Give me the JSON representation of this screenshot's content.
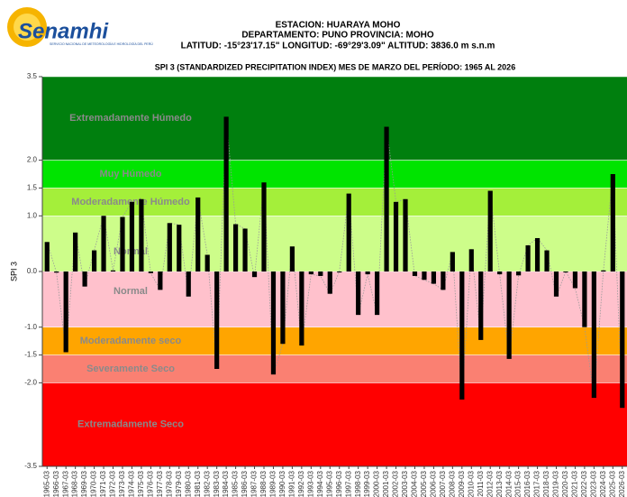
{
  "logo": {
    "name": "Senamhi",
    "subtitle": "SERVICIO NACIONAL DE METEOROLOGÍA E HIDROLOGÍA DEL PERÚ"
  },
  "header": {
    "line1": "ESTACION: HUARAYA MOHO",
    "line2": "DEPARTAMENTO: PUNO PROVINCIA: MOHO",
    "line3": "LATITUD: -15°23'17.15\" LONGITUD: -69°29'3.09\" ALTITUD: 3836.0 m s.n.m"
  },
  "chart_data": {
    "type": "bar",
    "title": "SPI 3 (STANDARDIZED PRECIPITATION INDEX) MES DE MARZO DEL PERÍODO: 1965 AL 2026",
    "ylabel": "SPI 3",
    "ylim": [
      -3.5,
      3.5
    ],
    "yticks": [
      -3.5,
      {
        "value": -2,
        "label": "-2.0"
      },
      -1.5,
      {
        "value": -1,
        "label": "-1.0"
      },
      {
        "value": 0,
        "label": "0.0"
      },
      {
        "value": 1,
        "label": "1.0"
      },
      1.5,
      {
        "value": 2,
        "label": "2.0"
      },
      3.5
    ],
    "color": "#000000",
    "line_color": "#999999",
    "bands": [
      {
        "label": "Extremadamente Húmedo",
        "from": 2,
        "to": 3.5,
        "color": "#007f0e"
      },
      {
        "label": "Muy Húmedo",
        "from": 1.5,
        "to": 2,
        "color": "#00e400"
      },
      {
        "label": "Moderadamente Húmedo",
        "from": 1,
        "to": 1.5,
        "color": "#a4ef3a"
      },
      {
        "label": "Normal",
        "from": 0,
        "to": 1,
        "color": "#cdfd8a"
      },
      {
        "label": "Normal",
        "from": -1,
        "to": 0,
        "color": "#ffc1cc"
      },
      {
        "label": "Moderadamente seco",
        "from": -1.5,
        "to": -1,
        "color": "#ffa500"
      },
      {
        "label": "Severamente Seco",
        "from": -2,
        "to": -1.5,
        "color": "#fa8072"
      },
      {
        "label": "Extremadamente Seco",
        "from": -3.5,
        "to": -2,
        "color": "#ff0000"
      }
    ],
    "categories": [
      "1965-03",
      "1966-03",
      "1967-03",
      "1968-03",
      "1969-03",
      "1970-03",
      "1971-03",
      "1972-03",
      "1973-03",
      "1974-03",
      "1975-03",
      "1976-03",
      "1977-03",
      "1978-03",
      "1979-03",
      "1980-03",
      "1981-03",
      "1982-03",
      "1983-03",
      "1984-03",
      "1985-03",
      "1986-03",
      "1987-03",
      "1988-03",
      "1989-03",
      "1990-03",
      "1991-03",
      "1992-03",
      "1993-03",
      "1994-03",
      "1995-03",
      "1996-03",
      "1997-03",
      "1998-03",
      "1999-03",
      "2000-03",
      "2001-03",
      "2002-03",
      "2003-03",
      "2004-03",
      "2005-03",
      "2006-03",
      "2007-03",
      "2008-03",
      "2009-03",
      "2010-03",
      "2011-03",
      "2012-03",
      "2013-03",
      "2014-03",
      "2015-03",
      "2016-03",
      "2017-03",
      "2018-03",
      "2019-03",
      "2020-03",
      "2021-03",
      "2022-03",
      "2023-03",
      "2024-03",
      "2025-03",
      "2026-03"
    ],
    "values": [
      0.53,
      -0.02,
      -1.45,
      0.7,
      -0.27,
      0.38,
      1.0,
      0.02,
      0.98,
      1.25,
      1.3,
      -0.03,
      -0.33,
      0.87,
      0.84,
      -0.45,
      1.33,
      0.3,
      -1.75,
      2.78,
      0.85,
      0.77,
      -0.1,
      1.6,
      -1.85,
      -1.3,
      0.45,
      -1.33,
      -0.05,
      -0.08,
      -0.4,
      0.0,
      1.4,
      -0.78,
      -0.05,
      -0.78,
      2.6,
      1.25,
      1.3,
      -0.08,
      -0.15,
      -0.22,
      -0.33,
      0.35,
      -2.3,
      0.4,
      -1.23,
      1.45,
      -0.05,
      -1.57,
      -0.07,
      0.47,
      0.6,
      0.38,
      -0.45,
      0.0,
      -0.3,
      -1.0,
      -2.27,
      0.02,
      1.75,
      -2.45
    ]
  }
}
